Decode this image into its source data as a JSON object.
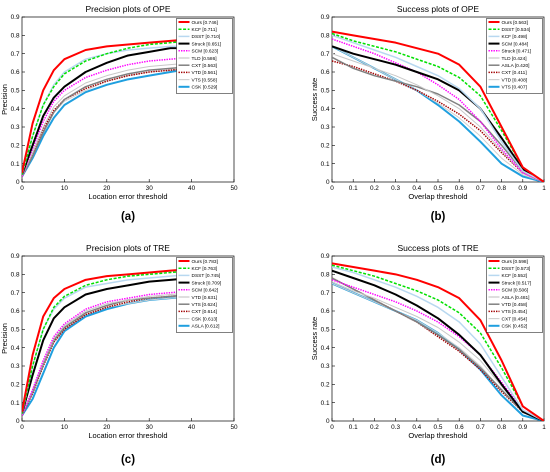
{
  "chart_data": [
    {
      "type": "line",
      "panel_caption": "(a)",
      "title": "Precision plots of OPE",
      "xlabel": "Location error threshold",
      "ylabel": "Precision",
      "xlim": [
        0,
        50
      ],
      "ylim": [
        0,
        0.9
      ],
      "xticks": [
        "0",
        "10",
        "20",
        "30",
        "40",
        "50"
      ],
      "yticks": [
        "0",
        "0.1",
        "0.2",
        "0.3",
        "0.4",
        "0.5",
        "0.6",
        "0.7",
        "0.8",
        "0.9"
      ],
      "grid": false,
      "legend_position": "top-right",
      "x": [
        0,
        2.5,
        5,
        7.5,
        10,
        15,
        20,
        25,
        30,
        35,
        40
      ],
      "series": [
        {
          "name": "Ours [0.746]",
          "color": "#ff0000",
          "style": "solid",
          "width": 2.0,
          "values": [
            0.05,
            0.32,
            0.5,
            0.61,
            0.67,
            0.72,
            0.74,
            0.75,
            0.76,
            0.77,
            0.78
          ]
        },
        {
          "name": "KCF [0.711]",
          "color": "#00e000",
          "style": "dashed",
          "width": 1.5,
          "values": [
            0.04,
            0.25,
            0.42,
            0.52,
            0.59,
            0.66,
            0.7,
            0.73,
            0.75,
            0.76,
            0.77
          ]
        },
        {
          "name": "DSST [0.710]",
          "color": "#b8d8f0",
          "style": "solid",
          "width": 1.5,
          "values": [
            0.04,
            0.25,
            0.42,
            0.53,
            0.6,
            0.67,
            0.7,
            0.72,
            0.73,
            0.74,
            0.74
          ]
        },
        {
          "name": "Struck [0.651]",
          "color": "#000000",
          "style": "solid",
          "width": 2.0,
          "values": [
            0.04,
            0.2,
            0.36,
            0.46,
            0.52,
            0.6,
            0.65,
            0.69,
            0.71,
            0.73,
            0.73
          ]
        },
        {
          "name": "SCM [0.623]",
          "color": "#ff00ff",
          "style": "dotted",
          "width": 1.5,
          "values": [
            0.03,
            0.18,
            0.33,
            0.44,
            0.5,
            0.57,
            0.61,
            0.64,
            0.66,
            0.67,
            0.68
          ]
        },
        {
          "name": "TLD [0.586]",
          "color": "#c8c8c8",
          "style": "solid",
          "width": 1.0,
          "values": [
            0.03,
            0.16,
            0.3,
            0.41,
            0.47,
            0.54,
            0.58,
            0.61,
            0.63,
            0.64,
            0.65
          ]
        },
        {
          "name": "CXT [0.563]",
          "color": "#808080",
          "style": "solid",
          "width": 1.5,
          "values": [
            0.03,
            0.14,
            0.27,
            0.38,
            0.45,
            0.52,
            0.56,
            0.59,
            0.61,
            0.62,
            0.63
          ]
        },
        {
          "name": "VTD [0.561]",
          "color": "#a00000",
          "style": "dotted",
          "width": 1.5,
          "values": [
            0.03,
            0.15,
            0.29,
            0.39,
            0.45,
            0.51,
            0.55,
            0.58,
            0.6,
            0.61,
            0.62
          ]
        },
        {
          "name": "VTS [0.558]",
          "color": "#d0d0d0",
          "style": "solid",
          "width": 1.0,
          "values": [
            0.03,
            0.15,
            0.28,
            0.38,
            0.44,
            0.5,
            0.55,
            0.58,
            0.6,
            0.61,
            0.62
          ]
        },
        {
          "name": "CSK [0.529]",
          "color": "#1f9fdf",
          "style": "solid",
          "width": 2.0,
          "values": [
            0.03,
            0.13,
            0.25,
            0.35,
            0.42,
            0.49,
            0.53,
            0.56,
            0.58,
            0.6,
            0.62
          ]
        }
      ]
    },
    {
      "type": "line",
      "panel_caption": "(b)",
      "title": "Success plots of OPE",
      "xlabel": "Overlap threshold",
      "ylabel": "Success rate",
      "xlim": [
        0,
        1
      ],
      "ylim": [
        0,
        0.9
      ],
      "xticks": [
        "0",
        "0.1",
        "0.2",
        "0.3",
        "0.4",
        "0.5",
        "0.6",
        "0.7",
        "0.8",
        "0.9",
        "1"
      ],
      "yticks": [
        "0",
        "0.1",
        "0.2",
        "0.3",
        "0.4",
        "0.5",
        "0.6",
        "0.7",
        "0.8",
        "0.9"
      ],
      "grid": false,
      "legend_position": "top-right",
      "x": [
        0,
        0.1,
        0.2,
        0.3,
        0.4,
        0.5,
        0.6,
        0.7,
        0.8,
        0.9,
        1.0
      ],
      "series": [
        {
          "name": "Ours [0.563]",
          "color": "#ff0000",
          "style": "solid",
          "width": 2.0,
          "values": [
            0.82,
            0.8,
            0.78,
            0.76,
            0.73,
            0.7,
            0.64,
            0.52,
            0.3,
            0.08,
            0.0
          ]
        },
        {
          "name": "DSST [0.534]",
          "color": "#00e000",
          "style": "dashed",
          "width": 1.5,
          "values": [
            0.81,
            0.77,
            0.74,
            0.71,
            0.67,
            0.63,
            0.57,
            0.47,
            0.28,
            0.08,
            0.0
          ]
        },
        {
          "name": "KCF [0.498]",
          "color": "#b8d8f0",
          "style": "solid",
          "width": 1.5,
          "values": [
            0.8,
            0.76,
            0.72,
            0.68,
            0.63,
            0.58,
            0.51,
            0.4,
            0.22,
            0.06,
            0.0
          ]
        },
        {
          "name": "SCM [0.484]",
          "color": "#000000",
          "style": "solid",
          "width": 2.0,
          "values": [
            0.74,
            0.7,
            0.67,
            0.64,
            0.6,
            0.56,
            0.5,
            0.4,
            0.24,
            0.07,
            0.0
          ]
        },
        {
          "name": "Struck [0.471]",
          "color": "#ff00ff",
          "style": "dotted",
          "width": 1.5,
          "values": [
            0.78,
            0.74,
            0.7,
            0.65,
            0.6,
            0.53,
            0.45,
            0.33,
            0.18,
            0.05,
            0.0
          ]
        },
        {
          "name": "TLD [0.424]",
          "color": "#c8c8c8",
          "style": "solid",
          "width": 1.0,
          "values": [
            0.7,
            0.66,
            0.62,
            0.58,
            0.53,
            0.47,
            0.4,
            0.3,
            0.17,
            0.05,
            0.0
          ]
        },
        {
          "name": "ASLA [0.420]",
          "color": "#808080",
          "style": "solid",
          "width": 1.5,
          "values": [
            0.68,
            0.62,
            0.58,
            0.55,
            0.52,
            0.48,
            0.42,
            0.33,
            0.2,
            0.06,
            0.0
          ]
        },
        {
          "name": "CXT [0.411]",
          "color": "#a00000",
          "style": "dotted",
          "width": 1.5,
          "values": [
            0.66,
            0.63,
            0.59,
            0.55,
            0.5,
            0.44,
            0.37,
            0.28,
            0.16,
            0.05,
            0.0
          ]
        },
        {
          "name": "VTD [0.408]",
          "color": "#d0d0d0",
          "style": "solid",
          "width": 1.0,
          "values": [
            0.74,
            0.68,
            0.62,
            0.56,
            0.5,
            0.43,
            0.35,
            0.25,
            0.13,
            0.04,
            0.0
          ]
        },
        {
          "name": "VTS [0.407]",
          "color": "#1f9fdf",
          "style": "solid",
          "width": 2.0,
          "values": [
            0.74,
            0.68,
            0.62,
            0.56,
            0.5,
            0.42,
            0.33,
            0.22,
            0.1,
            0.03,
            0.0
          ]
        }
      ]
    },
    {
      "type": "line",
      "panel_caption": "(c)",
      "title": "Precision plots of TRE",
      "xlabel": "Location error threshold",
      "ylabel": "Precision",
      "xlim": [
        0,
        50
      ],
      "ylim": [
        0,
        0.9
      ],
      "xticks": [
        "0",
        "10",
        "20",
        "30",
        "40",
        "50"
      ],
      "yticks": [
        "0",
        "0.1",
        "0.2",
        "0.3",
        "0.4",
        "0.5",
        "0.6",
        "0.7",
        "0.8",
        "0.9"
      ],
      "grid": false,
      "legend_position": "top-right",
      "x": [
        0,
        2.5,
        5,
        7.5,
        10,
        15,
        20,
        25,
        30,
        35,
        40
      ],
      "series": [
        {
          "name": "Ours [0.783]",
          "color": "#ff0000",
          "style": "solid",
          "width": 2.0,
          "values": [
            0.05,
            0.36,
            0.57,
            0.67,
            0.72,
            0.77,
            0.79,
            0.8,
            0.81,
            0.82,
            0.83
          ]
        },
        {
          "name": "KCF [0.763]",
          "color": "#00e000",
          "style": "dashed",
          "width": 1.5,
          "values": [
            0.04,
            0.3,
            0.5,
            0.62,
            0.68,
            0.74,
            0.77,
            0.79,
            0.8,
            0.81,
            0.82
          ]
        },
        {
          "name": "DSST [0.745]",
          "color": "#b8d8f0",
          "style": "solid",
          "width": 1.5,
          "values": [
            0.04,
            0.3,
            0.5,
            0.61,
            0.67,
            0.73,
            0.75,
            0.77,
            0.78,
            0.79,
            0.8
          ]
        },
        {
          "name": "Struck [0.709]",
          "color": "#000000",
          "style": "solid",
          "width": 2.0,
          "values": [
            0.04,
            0.25,
            0.44,
            0.56,
            0.62,
            0.69,
            0.72,
            0.74,
            0.76,
            0.77,
            0.78
          ]
        },
        {
          "name": "SCM [0.642]",
          "color": "#ff00ff",
          "style": "dotted",
          "width": 1.5,
          "values": [
            0.03,
            0.17,
            0.33,
            0.46,
            0.53,
            0.61,
            0.65,
            0.67,
            0.69,
            0.7,
            0.71
          ]
        },
        {
          "name": "VTD [0.631]",
          "color": "#c8c8c8",
          "style": "solid",
          "width": 1.0,
          "values": [
            0.03,
            0.17,
            0.32,
            0.45,
            0.52,
            0.6,
            0.64,
            0.66,
            0.68,
            0.69,
            0.7
          ]
        },
        {
          "name": "VTS [0.624]",
          "color": "#808080",
          "style": "solid",
          "width": 1.5,
          "values": [
            0.03,
            0.16,
            0.31,
            0.44,
            0.51,
            0.59,
            0.63,
            0.66,
            0.67,
            0.68,
            0.69
          ]
        },
        {
          "name": "CXT [0.614]",
          "color": "#a00000",
          "style": "dotted",
          "width": 1.5,
          "values": [
            0.03,
            0.15,
            0.3,
            0.43,
            0.5,
            0.58,
            0.62,
            0.65,
            0.67,
            0.68,
            0.69
          ]
        },
        {
          "name": "CSK [0.613]",
          "color": "#d0d0d0",
          "style": "solid",
          "width": 1.0,
          "values": [
            0.03,
            0.15,
            0.3,
            0.43,
            0.5,
            0.58,
            0.62,
            0.64,
            0.66,
            0.67,
            0.68
          ]
        },
        {
          "name": "ASLA [0.612]",
          "color": "#1f9fdf",
          "style": "solid",
          "width": 2.0,
          "values": [
            0.03,
            0.12,
            0.26,
            0.4,
            0.49,
            0.57,
            0.61,
            0.64,
            0.66,
            0.67,
            0.68
          ]
        }
      ]
    },
    {
      "type": "line",
      "panel_caption": "(d)",
      "title": "Success plots of TRE",
      "xlabel": "Overlap threshold",
      "ylabel": "Success rate",
      "xlim": [
        0,
        1
      ],
      "ylim": [
        0,
        0.9
      ],
      "xticks": [
        "0",
        "0.1",
        "0.2",
        "0.3",
        "0.4",
        "0.5",
        "0.6",
        "0.7",
        "0.8",
        "0.9",
        "1"
      ],
      "yticks": [
        "0",
        "0.1",
        "0.2",
        "0.3",
        "0.4",
        "0.5",
        "0.6",
        "0.7",
        "0.8",
        "0.9"
      ],
      "grid": false,
      "legend_position": "top-right",
      "x": [
        0,
        0.1,
        0.2,
        0.3,
        0.4,
        0.5,
        0.6,
        0.7,
        0.8,
        0.9,
        1.0
      ],
      "series": [
        {
          "name": "Ours [0.598]",
          "color": "#ff0000",
          "style": "solid",
          "width": 2.0,
          "values": [
            0.86,
            0.84,
            0.82,
            0.8,
            0.77,
            0.73,
            0.67,
            0.55,
            0.33,
            0.08,
            0.0
          ]
        },
        {
          "name": "DSST [0.573]",
          "color": "#00e000",
          "style": "dashed",
          "width": 1.5,
          "values": [
            0.85,
            0.82,
            0.79,
            0.75,
            0.71,
            0.66,
            0.59,
            0.48,
            0.29,
            0.08,
            0.0
          ]
        },
        {
          "name": "KCF [0.552]",
          "color": "#b8d8f0",
          "style": "solid",
          "width": 1.5,
          "values": [
            0.84,
            0.81,
            0.77,
            0.73,
            0.68,
            0.62,
            0.54,
            0.42,
            0.24,
            0.06,
            0.0
          ]
        },
        {
          "name": "Struck [0.517]",
          "color": "#000000",
          "style": "solid",
          "width": 2.0,
          "values": [
            0.82,
            0.78,
            0.74,
            0.69,
            0.63,
            0.56,
            0.47,
            0.36,
            0.2,
            0.05,
            0.0
          ]
        },
        {
          "name": "SCM [0.506]",
          "color": "#ff00ff",
          "style": "dotted",
          "width": 1.5,
          "values": [
            0.77,
            0.73,
            0.69,
            0.65,
            0.6,
            0.54,
            0.46,
            0.36,
            0.21,
            0.06,
            0.0
          ]
        },
        {
          "name": "ASLA [0.481]",
          "color": "#c8c8c8",
          "style": "solid",
          "width": 1.0,
          "values": [
            0.76,
            0.71,
            0.67,
            0.62,
            0.57,
            0.51,
            0.43,
            0.33,
            0.19,
            0.05,
            0.0
          ]
        },
        {
          "name": "VTD [0.458]",
          "color": "#808080",
          "style": "solid",
          "width": 1.5,
          "values": [
            0.78,
            0.72,
            0.66,
            0.6,
            0.54,
            0.47,
            0.39,
            0.29,
            0.17,
            0.05,
            0.0
          ]
        },
        {
          "name": "VTS [0.454]",
          "color": "#a00000",
          "style": "dotted",
          "width": 1.5,
          "values": [
            0.78,
            0.72,
            0.66,
            0.6,
            0.54,
            0.46,
            0.38,
            0.28,
            0.16,
            0.05,
            0.0
          ]
        },
        {
          "name": "CXT [0.454]",
          "color": "#d0d0d0",
          "style": "solid",
          "width": 1.0,
          "values": [
            0.75,
            0.7,
            0.65,
            0.6,
            0.55,
            0.48,
            0.4,
            0.3,
            0.17,
            0.05,
            0.0
          ]
        },
        {
          "name": "CSK [0.452]",
          "color": "#1f9fdf",
          "style": "solid",
          "width": 2.0,
          "values": [
            0.75,
            0.7,
            0.65,
            0.6,
            0.55,
            0.48,
            0.39,
            0.28,
            0.14,
            0.03,
            0.0
          ]
        }
      ]
    }
  ]
}
